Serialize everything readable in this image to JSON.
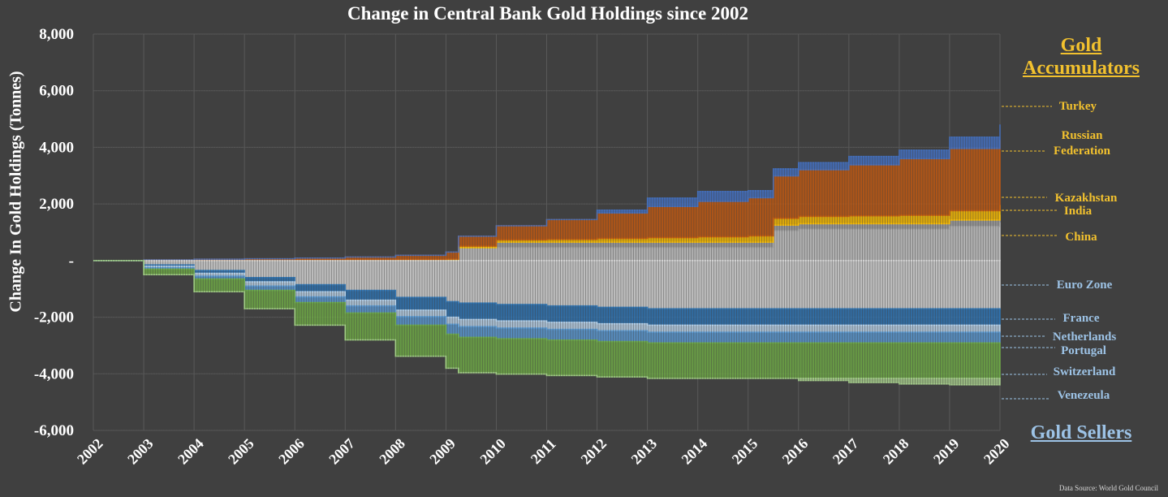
{
  "chart_data": {
    "type": "area",
    "title": "Change in Central Bank Gold Holdings since 2002",
    "ylabel": "Change In Gold Holdings (Tonnes)",
    "xlabel": "",
    "ylim": [
      -6000,
      8000
    ],
    "y_ticks": [
      8000,
      6000,
      4000,
      2000,
      0,
      -2000,
      -4000,
      -6000
    ],
    "y_tick_labels": [
      "8,000",
      "6,000",
      "4,000",
      "2,000",
      "-",
      "-2,000",
      "-4,000",
      "-6,000"
    ],
    "x_ticks": [
      "2002",
      "2003",
      "2004",
      "2005",
      "2006",
      "2007",
      "2008",
      "2009",
      "2010",
      "2011",
      "2012",
      "2013",
      "2014",
      "2015",
      "2016",
      "2017",
      "2018",
      "2019",
      "2020"
    ],
    "grid": true,
    "x": [
      2002.0,
      2003.0,
      2004.0,
      2005.0,
      2006.0,
      2007.0,
      2008.0,
      2009.0,
      2009.25,
      2010.0,
      2011.0,
      2012.0,
      2013.0,
      2014.0,
      2015.0,
      2015.5,
      2016.0,
      2017.0,
      2018.0,
      2019.0,
      2020.0
    ],
    "series": [
      {
        "name": "China",
        "group": "accumulator",
        "color": "#c9c9c9",
        "values": [
          0,
          0,
          0,
          0,
          0,
          0,
          0,
          0,
          450,
          450,
          450,
          450,
          450,
          450,
          450,
          1050,
          1100,
          1100,
          1100,
          1200,
          1350
        ]
      },
      {
        "name": "India",
        "group": "accumulator",
        "color": "#a5a5a5",
        "values": [
          0,
          0,
          0,
          0,
          0,
          0,
          0,
          0,
          0,
          200,
          200,
          200,
          200,
          200,
          200,
          200,
          200,
          200,
          200,
          230,
          270
        ]
      },
      {
        "name": "Kazakhstan",
        "group": "accumulator",
        "color": "#ffc000",
        "values": [
          0,
          5,
          10,
          15,
          20,
          25,
          35,
          50,
          60,
          80,
          100,
          130,
          160,
          190,
          220,
          240,
          260,
          280,
          300,
          330,
          340
        ]
      },
      {
        "name": "Russian Federation",
        "group": "accumulator",
        "color": "#c55a11",
        "values": [
          0,
          20,
          40,
          50,
          70,
          100,
          150,
          250,
          350,
          500,
          700,
          900,
          1100,
          1250,
          1350,
          1500,
          1650,
          1800,
          2000,
          2200,
          2300
        ]
      },
      {
        "name": "Turkey",
        "group": "accumulator",
        "color": "#4472c4",
        "values": [
          0,
          0,
          0,
          0,
          0,
          0,
          0,
          0,
          0,
          0,
          0,
          100,
          300,
          350,
          250,
          250,
          250,
          300,
          300,
          400,
          550
        ]
      },
      {
        "name": "Euro Zone",
        "group": "seller",
        "color": "#d9d9d9",
        "values": [
          0,
          -150,
          -350,
          -600,
          -850,
          -1050,
          -1300,
          -1450,
          -1500,
          -1550,
          -1600,
          -1650,
          -1700,
          -1700,
          -1700,
          -1700,
          -1700,
          -1700,
          -1700,
          -1700,
          -1700
        ]
      },
      {
        "name": "France",
        "group": "seller",
        "color": "#2e75b6",
        "values": [
          0,
          -50,
          -100,
          -150,
          -250,
          -350,
          -450,
          -550,
          -580,
          -580,
          -580,
          -580,
          -580,
          -580,
          -580,
          -580,
          -580,
          -580,
          -580,
          -580,
          -580
        ]
      },
      {
        "name": "Netherlands",
        "group": "seller",
        "color": "#bdd7ee",
        "values": [
          0,
          -50,
          -100,
          -150,
          -180,
          -200,
          -230,
          -250,
          -250,
          -250,
          -250,
          -250,
          -250,
          -250,
          -250,
          -250,
          -250,
          -250,
          -250,
          -250,
          -250
        ]
      },
      {
        "name": "Portugal",
        "group": "seller",
        "color": "#5b9bd5",
        "values": [
          0,
          -50,
          -100,
          -150,
          -200,
          -250,
          -300,
          -350,
          -380,
          -380,
          -380,
          -380,
          -380,
          -380,
          -380,
          -380,
          -380,
          -380,
          -380,
          -380,
          -380
        ]
      },
      {
        "name": "Switzerland",
        "group": "seller",
        "color": "#70ad47",
        "values": [
          0,
          -200,
          -450,
          -650,
          -800,
          -950,
          -1100,
          -1200,
          -1250,
          -1250,
          -1250,
          -1250,
          -1250,
          -1250,
          -1250,
          -1250,
          -1250,
          -1250,
          -1250,
          -1250,
          -1250
        ]
      },
      {
        "name": "Venezeula",
        "group": "seller",
        "color": "#a9d18e",
        "values": [
          0,
          0,
          0,
          0,
          0,
          0,
          0,
          0,
          0,
          0,
          0,
          0,
          0,
          0,
          0,
          0,
          -80,
          -150,
          -200,
          -230,
          -250
        ]
      }
    ]
  },
  "headings": {
    "accumulators": "Gold\nAccumulators",
    "sellers": "Gold Sellers"
  },
  "labels": {
    "turkey": "Turkey",
    "russia": "Russian\nFederation",
    "kazakhstan": "Kazakhstan",
    "india": "India",
    "china": "China",
    "eurozone": "Euro Zone",
    "france": "France",
    "netherlands": "Netherlands",
    "portugal": "Portugal",
    "switzerland": "Switzerland",
    "venezeula": "Venezeula"
  },
  "colors": {
    "background": "#404040",
    "accumulator_text": "#f2c12e",
    "seller_text": "#9dc3e6"
  },
  "source": "Data Source: World Gold Council"
}
